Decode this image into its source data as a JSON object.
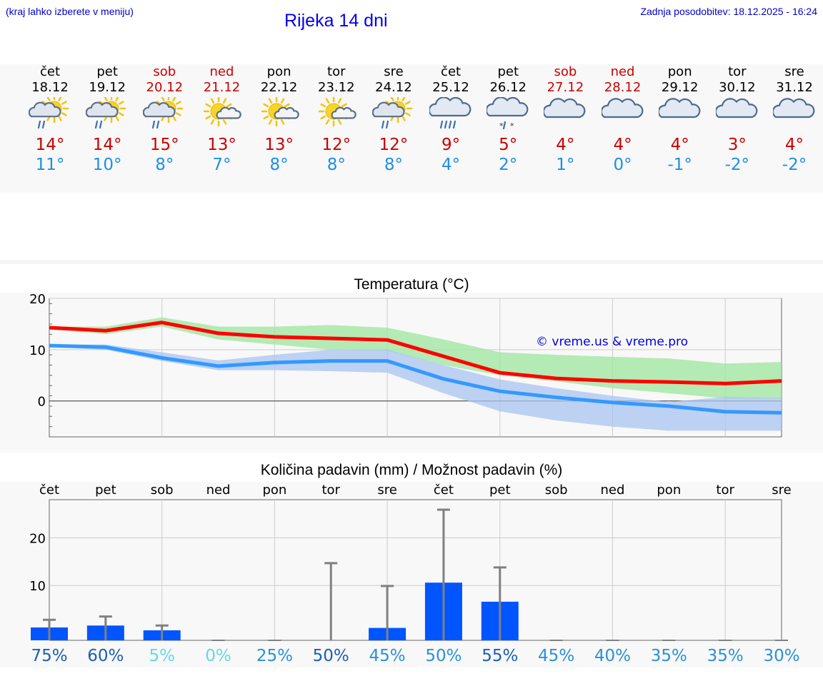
{
  "header": {
    "city_hint": "(kraj lahko izberete v meniju)",
    "title": "Rijeka 14 dni",
    "updated": "Zadnja posodobitev: 18.12.2025 - 16:24"
  },
  "days": [
    {
      "name": "čet",
      "date": "18.12",
      "max": "14°",
      "min": "11°",
      "icon": "sun-cloud-rain-icon",
      "weekend": false
    },
    {
      "name": "pet",
      "date": "19.12",
      "max": "14°",
      "min": "10°",
      "icon": "sun-cloud-rain-icon",
      "weekend": false
    },
    {
      "name": "sob",
      "date": "20.12",
      "max": "15°",
      "min": "8°",
      "icon": "sun-cloud-rain-icon",
      "weekend": true
    },
    {
      "name": "ned",
      "date": "21.12",
      "max": "13°",
      "min": "7°",
      "icon": "sun-cloud-icon",
      "weekend": true
    },
    {
      "name": "pon",
      "date": "22.12",
      "max": "13°",
      "min": "8°",
      "icon": "sun-cloud-icon",
      "weekend": false
    },
    {
      "name": "tor",
      "date": "23.12",
      "max": "12°",
      "min": "8°",
      "icon": "sun-cloud-icon",
      "weekend": false
    },
    {
      "name": "sre",
      "date": "24.12",
      "max": "12°",
      "min": "8°",
      "icon": "sun-cloud-rain-icon",
      "weekend": false
    },
    {
      "name": "čet",
      "date": "25.12",
      "max": "9°",
      "min": "4°",
      "icon": "cloud-heavy-rain-icon",
      "weekend": false
    },
    {
      "name": "pet",
      "date": "26.12",
      "max": "5°",
      "min": "2°",
      "icon": "cloud-sleet-icon",
      "weekend": false
    },
    {
      "name": "sob",
      "date": "27.12",
      "max": "4°",
      "min": "1°",
      "icon": "cloud-icon",
      "weekend": true
    },
    {
      "name": "ned",
      "date": "28.12",
      "max": "4°",
      "min": "0°",
      "icon": "cloud-icon",
      "weekend": true
    },
    {
      "name": "pon",
      "date": "29.12",
      "max": "4°",
      "min": "-1°",
      "icon": "cloud-icon",
      "weekend": false
    },
    {
      "name": "tor",
      "date": "30.12",
      "max": "3°",
      "min": "-2°",
      "icon": "cloud-icon",
      "weekend": false
    },
    {
      "name": "sre",
      "date": "31.12",
      "max": "4°",
      "min": "-2°",
      "icon": "cloud-icon",
      "weekend": false
    }
  ],
  "colors": {
    "max": "#ff0000",
    "min": "#3399ff",
    "max_band": "#9de59d",
    "min_band": "#a9c4f2",
    "bar": "#0055ff",
    "whisker": "#808080"
  },
  "chart_data": [
    {
      "type": "line",
      "title": "Temperatura (°C)",
      "ylim": [
        -7,
        20
      ],
      "yticks": [
        0,
        10,
        20
      ],
      "x": [
        0,
        1,
        2,
        3,
        4,
        5,
        6,
        7,
        8,
        9,
        10,
        11,
        12,
        13
      ],
      "series": [
        {
          "name": "max",
          "values": [
            14.3,
            13.7,
            15.3,
            13.2,
            12.5,
            12.2,
            11.9,
            8.7,
            5.5,
            4.4,
            3.9,
            3.7,
            3.4,
            3.9
          ]
        },
        {
          "name": "min",
          "values": [
            10.8,
            10.5,
            8.4,
            6.8,
            7.5,
            7.8,
            7.8,
            4.3,
            1.9,
            0.7,
            -0.3,
            -1.0,
            -2.1,
            -2.3
          ]
        }
      ],
      "bands": [
        {
          "name": "max-range",
          "low": [
            14.0,
            13.0,
            14.5,
            12.0,
            11.0,
            10.0,
            9.8,
            7.0,
            5.0,
            3.8,
            2.5,
            1.5,
            0.5,
            0.5
          ],
          "high": [
            14.5,
            14.5,
            16.3,
            14.5,
            14.5,
            14.8,
            14.3,
            12.0,
            9.5,
            9.0,
            8.6,
            8.3,
            7.3,
            7.6
          ]
        },
        {
          "name": "min-range",
          "low": [
            10.5,
            10.0,
            7.8,
            6.0,
            6.0,
            5.8,
            5.5,
            1.5,
            -2.0,
            -3.8,
            -5.0,
            -5.8,
            -5.8,
            -5.8
          ],
          "high": [
            11.0,
            11.0,
            9.5,
            7.9,
            9.0,
            10.0,
            10.0,
            7.0,
            4.2,
            2.5,
            1.0,
            -0.2,
            0.8,
            0.6
          ]
        }
      ],
      "watermark": "© vreme.us & vreme.pro"
    },
    {
      "type": "bar",
      "title": "Količina padavin (mm) / Možnost padavin (%)",
      "ylim": [
        -1.5,
        28
      ],
      "yticks": [
        0,
        10,
        20
      ],
      "categories": [
        "čet",
        "pet",
        "sob",
        "ned",
        "pon",
        "tor",
        "sre",
        "čet",
        "pet",
        "sob",
        "ned",
        "pon",
        "tor",
        "sre"
      ],
      "values": [
        1.2,
        1.6,
        0.6,
        0,
        0,
        0,
        1.1,
        10.6,
        6.6,
        0,
        0,
        0,
        0,
        0
      ],
      "max_values": [
        2.8,
        3.5,
        1.6,
        0,
        0.2,
        14.7,
        9.9,
        25.9,
        13.8,
        0.1,
        0.1,
        0.3,
        0.2,
        0.1
      ],
      "probabilities": [
        "75%",
        "60%",
        "5%",
        "0%",
        "25%",
        "50%",
        "45%",
        "50%",
        "55%",
        "45%",
        "40%",
        "35%",
        "35%",
        "30%"
      ],
      "prob_colors": [
        "#1a5fb4",
        "#1a5fb4",
        "#62d9e4",
        "#62d9e4",
        "#2a92d6",
        "#1a5fb4",
        "#2a92d6",
        "#2a92d6",
        "#1a5fb4",
        "#2a92d6",
        "#2a92d6",
        "#2a92d6",
        "#2a92d6",
        "#2a92d6"
      ]
    }
  ]
}
